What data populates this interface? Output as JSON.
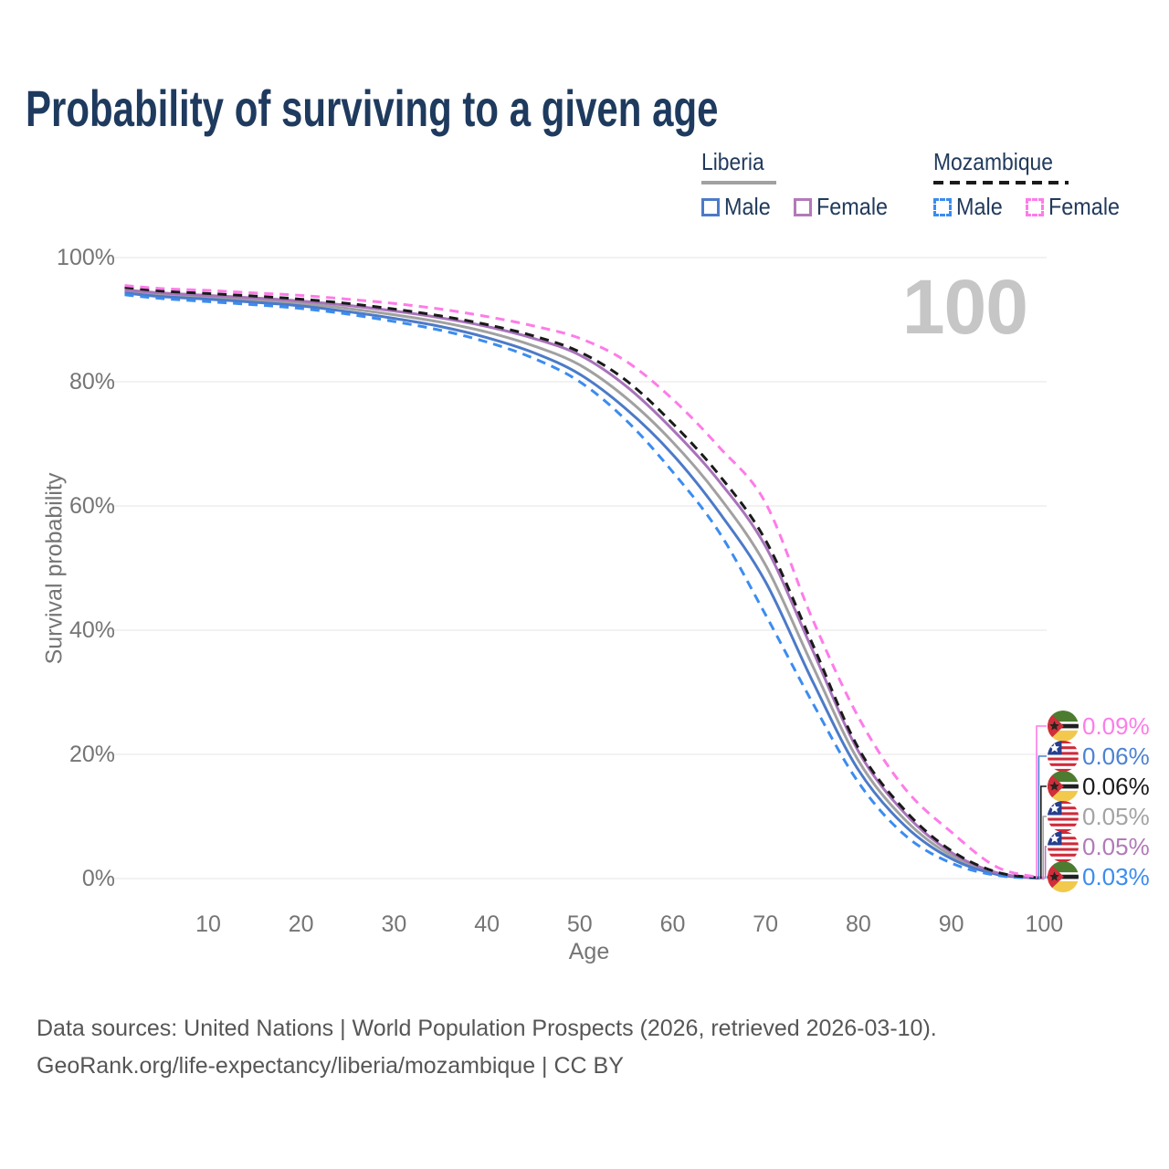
{
  "title": "Probability of surviving to a given age",
  "watermark_age": "100",
  "legend": {
    "groups": [
      {
        "label": "Liberia",
        "swatch_style": "solid",
        "swatch_color": "#a1a1a1",
        "items": [
          {
            "label": "Male",
            "color": "#4c7ac8",
            "dashed": false
          },
          {
            "label": "Female",
            "color": "#b279b8",
            "dashed": false
          }
        ]
      },
      {
        "label": "Mozambique",
        "swatch_style": "dashed",
        "swatch_color": "#1a1a1a",
        "items": [
          {
            "label": "Male",
            "color": "#3b8cf0",
            "dashed": true
          },
          {
            "label": "Female",
            "color": "#fd7ce8",
            "dashed": true
          }
        ]
      }
    ]
  },
  "chart_data": {
    "type": "line",
    "title": "Probability of surviving to a given age",
    "xlabel": "Age",
    "ylabel": "Survival probability",
    "x_range": [
      0,
      100
    ],
    "y_range_percent": [
      0,
      100
    ],
    "grid": "horizontal",
    "legend_position": "top-right",
    "x_ticks": [
      10,
      20,
      30,
      40,
      50,
      60,
      70,
      80,
      90,
      100
    ],
    "y_ticks": [
      {
        "value": 0,
        "label": "0%"
      },
      {
        "value": 20,
        "label": "20%"
      },
      {
        "value": 40,
        "label": "40%"
      },
      {
        "value": 60,
        "label": "60%"
      },
      {
        "value": 80,
        "label": "80%"
      },
      {
        "value": 100,
        "label": "100%"
      }
    ],
    "ages": [
      1,
      5,
      10,
      15,
      20,
      25,
      30,
      35,
      40,
      45,
      50,
      55,
      60,
      65,
      70,
      75,
      80,
      85,
      90,
      95,
      100
    ],
    "series": [
      {
        "name": "Liberia — Both sexes",
        "country": "Liberia",
        "sex": "Both",
        "color": "#a1a1a1",
        "dashed": false,
        "values": [
          94.6,
          94.0,
          93.6,
          93.1,
          92.6,
          91.8,
          90.8,
          89.6,
          88.0,
          85.8,
          82.7,
          77.4,
          70.3,
          61.5,
          50.5,
          34.5,
          19.0,
          9.5,
          3.7,
          0.8,
          0.05
        ]
      },
      {
        "name": "Liberia — Male",
        "country": "Liberia",
        "sex": "Male",
        "color": "#4c7ac8",
        "dashed": false,
        "values": [
          94.3,
          93.7,
          93.3,
          92.8,
          92.2,
          91.3,
          90.2,
          88.9,
          87.1,
          84.7,
          81.2,
          75.6,
          68.3,
          59.0,
          47.8,
          32.0,
          17.5,
          8.5,
          3.2,
          0.65,
          0.06
        ]
      },
      {
        "name": "Liberia — Female",
        "country": "Liberia",
        "sex": "Female",
        "color": "#a873ba",
        "dashed": false,
        "values": [
          94.8,
          94.3,
          93.9,
          93.5,
          93.0,
          92.3,
          91.4,
          90.3,
          88.9,
          87.0,
          84.3,
          79.3,
          72.3,
          64.0,
          53.5,
          37.0,
          20.5,
          10.5,
          4.2,
          0.9,
          0.05
        ]
      },
      {
        "name": "Mozambique — Male",
        "country": "Mozambique",
        "sex": "Male",
        "color": "#3b8cf0",
        "dashed": true,
        "values": [
          94.0,
          93.4,
          92.9,
          92.4,
          91.8,
          90.9,
          89.7,
          88.3,
          86.4,
          83.8,
          80.0,
          73.8,
          65.5,
          55.8,
          42.5,
          28.5,
          15.5,
          7.0,
          2.5,
          0.5,
          0.03
        ]
      },
      {
        "name": "Mozambique — Both sexes",
        "country": "Mozambique",
        "sex": "Both",
        "color": "#1a1a1a",
        "dashed": true,
        "values": [
          95.2,
          94.6,
          94.2,
          93.8,
          93.3,
          92.6,
          91.7,
          90.6,
          89.2,
          87.4,
          84.8,
          80.2,
          73.3,
          65.0,
          54.5,
          38.0,
          21.0,
          11.0,
          4.5,
          1.0,
          0.06
        ]
      },
      {
        "name": "Mozambique — Female",
        "country": "Mozambique",
        "sex": "Female",
        "color": "#fd7ce8",
        "dashed": true,
        "values": [
          95.5,
          95.0,
          94.7,
          94.3,
          93.9,
          93.3,
          92.6,
          91.7,
          90.5,
          89.0,
          87.0,
          83.3,
          77.2,
          69.5,
          60.5,
          42.0,
          26.0,
          14.5,
          7.5,
          1.8,
          0.09
        ]
      }
    ],
    "end_labels": [
      {
        "flag": "mozambique",
        "label": "0.09%",
        "color": "#fd7ce8",
        "series": "Mozambique Female"
      },
      {
        "flag": "liberia",
        "label": "0.06%",
        "color": "#4d82d2",
        "series": "Liberia Male"
      },
      {
        "flag": "mozambique",
        "label": "0.06%",
        "color": "#1a1a1a",
        "series": "Mozambique Both sexes"
      },
      {
        "flag": "liberia",
        "label": "0.05%",
        "color": "#a3a3a3",
        "series": "Liberia Both sexes"
      },
      {
        "flag": "liberia",
        "label": "0.05%",
        "color": "#b279b8",
        "series": "Liberia Female"
      },
      {
        "flag": "mozambique",
        "label": "0.03%",
        "color": "#3b8cf0",
        "series": "Mozambique Male"
      }
    ]
  },
  "footer": {
    "line1": "Data sources: United Nations | World Population Prospects (2026, retrieved 2026-03-10).",
    "line2": "GeoRank.org/life-expectancy/liberia/mozambique | CC BY"
  }
}
